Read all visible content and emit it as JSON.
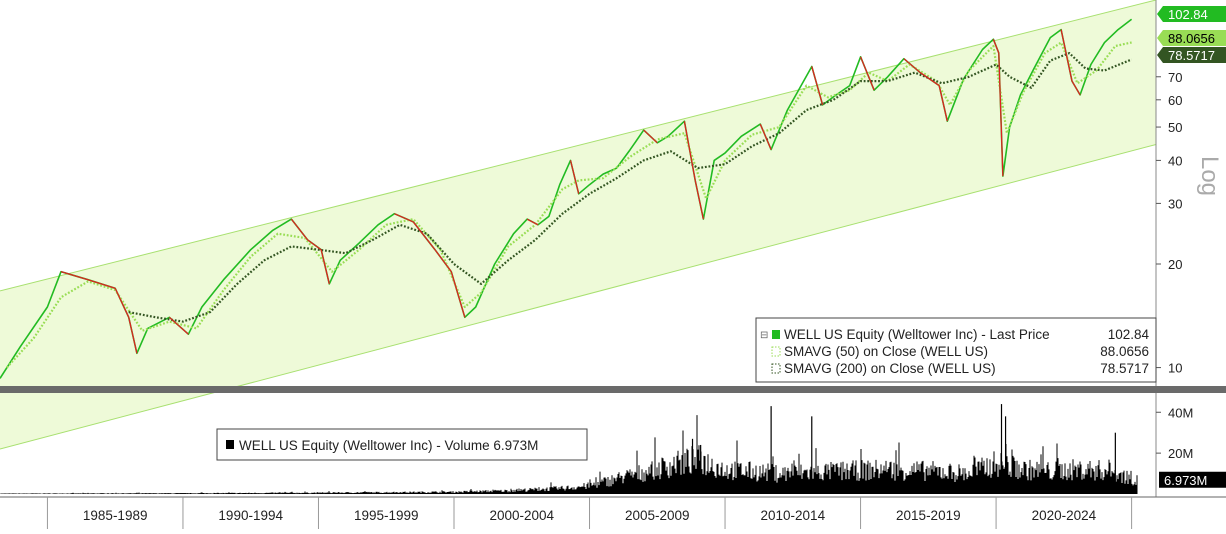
{
  "chart_data": [
    {
      "type": "line",
      "panel": "price",
      "scale": "log",
      "axis_label": "Log",
      "y_ticks": [
        10,
        20,
        30,
        40,
        50,
        60,
        70
      ],
      "ylim": [
        8.9,
        117
      ],
      "xlim": [
        1983.25,
        2025.9
      ],
      "x_tick_labels": [
        "1985-1989",
        "1990-1994",
        "1995-1999",
        "2000-2004",
        "2005-2009",
        "2010-2014",
        "2015-2019",
        "2020-2024"
      ],
      "x_period_starts": [
        1985,
        1990,
        1995,
        2000,
        2005,
        2010,
        2015,
        2020,
        2025
      ],
      "grid": false,
      "legend_position": "bottom-right",
      "channel": {
        "upper": [
          [
            1983.25,
            16.7
          ],
          [
            2025.9,
            117
          ]
        ],
        "lower": [
          [
            1983.25,
            5.8
          ],
          [
            2025.9,
            44.5
          ]
        ]
      },
      "series": [
        {
          "name": "WELL US Equity (Welltower Inc) - Last Price",
          "value_label": "102.84",
          "color": "#22bb22",
          "points": [
            [
              1983.25,
              9.3
            ],
            [
              1984,
              11.5
            ],
            [
              1985,
              15
            ],
            [
              1985.5,
              19
            ],
            [
              1986.5,
              18
            ],
            [
              1987.5,
              17
            ],
            [
              1988.0,
              14
            ],
            [
              1988.3,
              11
            ],
            [
              1988.7,
              13
            ],
            [
              1989.5,
              14
            ],
            [
              1990.2,
              12.5
            ],
            [
              1990.7,
              15
            ],
            [
              1991.5,
              18
            ],
            [
              1992.5,
              22
            ],
            [
              1993.3,
              25
            ],
            [
              1994.0,
              27
            ],
            [
              1994.6,
              23.5
            ],
            [
              1995.1,
              22
            ],
            [
              1995.4,
              17.5
            ],
            [
              1995.8,
              20.5
            ],
            [
              1996.5,
              23
            ],
            [
              1997.2,
              26
            ],
            [
              1997.8,
              28
            ],
            [
              1998.5,
              26.5
            ],
            [
              1999.3,
              22
            ],
            [
              1999.9,
              19
            ],
            [
              2000.4,
              14
            ],
            [
              2000.8,
              15
            ],
            [
              2001.5,
              20
            ],
            [
              2002.2,
              24.5
            ],
            [
              2002.7,
              27
            ],
            [
              2003.1,
              26
            ],
            [
              2003.5,
              27.5
            ],
            [
              2003.9,
              34
            ],
            [
              2004.3,
              40
            ],
            [
              2004.6,
              32
            ],
            [
              2005.0,
              34
            ],
            [
              2005.5,
              36.5
            ],
            [
              2006.0,
              38
            ],
            [
              2006.5,
              43
            ],
            [
              2007.0,
              49
            ],
            [
              2007.5,
              45
            ],
            [
              2007.9,
              47
            ],
            [
              2008.5,
              52
            ],
            [
              2008.9,
              35
            ],
            [
              2009.2,
              27
            ],
            [
              2009.6,
              40
            ],
            [
              2010.0,
              42
            ],
            [
              2010.6,
              47
            ],
            [
              2011.3,
              51
            ],
            [
              2011.7,
              43
            ],
            [
              2012.3,
              56
            ],
            [
              2013.2,
              75
            ],
            [
              2013.6,
              58
            ],
            [
              2014.1,
              62
            ],
            [
              2014.6,
              66
            ],
            [
              2015.0,
              80
            ],
            [
              2015.5,
              64
            ],
            [
              2016.0,
              70
            ],
            [
              2016.6,
              79
            ],
            [
              2017.2,
              72
            ],
            [
              2017.9,
              66
            ],
            [
              2018.2,
              52
            ],
            [
              2018.8,
              69
            ],
            [
              2019.5,
              84
            ],
            [
              2019.9,
              90
            ],
            [
              2020.1,
              82
            ],
            [
              2020.25,
              36
            ],
            [
              2020.5,
              50
            ],
            [
              2020.9,
              62
            ],
            [
              2021.4,
              74
            ],
            [
              2022.0,
              91
            ],
            [
              2022.4,
              96
            ],
            [
              2022.8,
              68
            ],
            [
              2023.1,
              62
            ],
            [
              2023.5,
              76
            ],
            [
              2024.0,
              88
            ],
            [
              2024.5,
              96
            ],
            [
              2025.0,
              102.84
            ]
          ]
        },
        {
          "name": "SMAVG (50)  on Close (WELL US)",
          "value_label": "88.0656",
          "color": "#99dd55",
          "style": "dotted",
          "points": [
            [
              1983.5,
              10
            ],
            [
              1984.5,
              12.2
            ],
            [
              1985.5,
              16
            ],
            [
              1986.5,
              17.8
            ],
            [
              1987.5,
              16.8
            ],
            [
              1988.5,
              12.8
            ],
            [
              1989.5,
              13.6
            ],
            [
              1990.5,
              13
            ],
            [
              1991.5,
              16.8
            ],
            [
              1992.5,
              21
            ],
            [
              1993.5,
              24.5
            ],
            [
              1994.5,
              23.8
            ],
            [
              1995.5,
              19
            ],
            [
              1996.5,
              22
            ],
            [
              1997.5,
              26
            ],
            [
              1998.5,
              27
            ],
            [
              1999.5,
              22
            ],
            [
              2000.4,
              15
            ],
            [
              2001.0,
              16.5
            ],
            [
              2002.0,
              22.5
            ],
            [
              2003.0,
              26
            ],
            [
              2004.0,
              33
            ],
            [
              2004.6,
              35
            ],
            [
              2005.5,
              35.5
            ],
            [
              2006.5,
              41
            ],
            [
              2007.5,
              46
            ],
            [
              2008.5,
              48
            ],
            [
              2009.3,
              31
            ],
            [
              2010.0,
              40
            ],
            [
              2011.0,
              47.5
            ],
            [
              2012.0,
              50
            ],
            [
              2013.0,
              66
            ],
            [
              2013.8,
              61
            ],
            [
              2014.6,
              64
            ],
            [
              2015.3,
              72
            ],
            [
              2016.0,
              68
            ],
            [
              2016.8,
              76
            ],
            [
              2017.8,
              68
            ],
            [
              2018.3,
              58
            ],
            [
              2019.0,
              73
            ],
            [
              2019.9,
              86
            ],
            [
              2020.4,
              48
            ],
            [
              2021.0,
              63
            ],
            [
              2021.8,
              82
            ],
            [
              2022.4,
              88
            ],
            [
              2023.0,
              67
            ],
            [
              2023.7,
              73
            ],
            [
              2024.4,
              86
            ],
            [
              2025.0,
              88.0656
            ]
          ]
        },
        {
          "name": "SMAVG (200)  on Close (WELL US)",
          "value_label": "78.5717",
          "color": "#335522",
          "style": "dotted",
          "points": [
            [
              1988.0,
              14.5
            ],
            [
              1989.0,
              14.0
            ],
            [
              1990.0,
              13.6
            ],
            [
              1991.0,
              14.5
            ],
            [
              1992.0,
              17.5
            ],
            [
              1993.0,
              20.5
            ],
            [
              1994.0,
              22.5
            ],
            [
              1995.0,
              22
            ],
            [
              1996.0,
              21.5
            ],
            [
              1997.0,
              23.5
            ],
            [
              1998.0,
              26
            ],
            [
              1999.0,
              24.5
            ],
            [
              2000.0,
              20
            ],
            [
              2001.0,
              17.5
            ],
            [
              2002.0,
              20.5
            ],
            [
              2003.0,
              23.5
            ],
            [
              2004.0,
              28
            ],
            [
              2005.0,
              32
            ],
            [
              2006.0,
              35.5
            ],
            [
              2007.0,
              40
            ],
            [
              2008.0,
              42.5
            ],
            [
              2009.0,
              38
            ],
            [
              2010.0,
              39
            ],
            [
              2011.0,
              44
            ],
            [
              2012.0,
              48
            ],
            [
              2013.0,
              56
            ],
            [
              2014.0,
              60
            ],
            [
              2015.0,
              68
            ],
            [
              2016.0,
              68
            ],
            [
              2017.0,
              72
            ],
            [
              2018.0,
              67
            ],
            [
              2019.0,
              70
            ],
            [
              2020.0,
              76
            ],
            [
              2020.5,
              70
            ],
            [
              2021.3,
              65
            ],
            [
              2022.0,
              78
            ],
            [
              2022.7,
              82
            ],
            [
              2023.3,
              74
            ],
            [
              2024.0,
              73
            ],
            [
              2025.0,
              78.5717
            ]
          ]
        }
      ],
      "last_price_labels": [
        {
          "text": "102.84",
          "value": 102.84,
          "color": "#22bb22"
        },
        {
          "text": "88.0656",
          "value": 88.0656,
          "color": "#99dd55"
        },
        {
          "text": "78.5717",
          "value": 78.5717,
          "color": "#335522"
        }
      ]
    },
    {
      "type": "bar",
      "panel": "volume",
      "series_name": "WELL US Equity (Welltower Inc) - Volume",
      "last_value_label": "6.973M",
      "y_ticks": [
        {
          "value": 20,
          "label": "20M"
        },
        {
          "value": 40,
          "label": "40M"
        }
      ],
      "ylim": [
        0,
        46
      ],
      "volume_profile_millions": [
        [
          1983.25,
          0.2
        ],
        [
          1990,
          0.35
        ],
        [
          1995,
          0.6
        ],
        [
          2000,
          1.0
        ],
        [
          2002,
          1.6
        ],
        [
          2004,
          2.8
        ],
        [
          2005,
          4.0
        ],
        [
          2006,
          7.5
        ],
        [
          2007,
          10.5
        ],
        [
          2008,
          14.0
        ],
        [
          2009,
          17.0
        ],
        [
          2010,
          12.0
        ],
        [
          2012,
          10.0
        ],
        [
          2014,
          11.0
        ],
        [
          2016,
          12.0
        ],
        [
          2018,
          11.0
        ],
        [
          2019,
          10.0
        ],
        [
          2020,
          15.0
        ],
        [
          2021,
          12.0
        ],
        [
          2022,
          11.0
        ],
        [
          2023,
          12.0
        ],
        [
          2024,
          11.5
        ],
        [
          2025.2,
          7.0
        ]
      ],
      "volume_spikes_millions": [
        [
          2008.8,
          27
        ],
        [
          2009.1,
          24
        ],
        [
          2011.7,
          43
        ],
        [
          2013.2,
          38
        ],
        [
          2020.2,
          44
        ],
        [
          2020.35,
          38
        ],
        [
          2024.4,
          30
        ]
      ]
    }
  ],
  "legend_price": {
    "entries": [
      {
        "label": "WELL US Equity (Welltower Inc) - Last Price",
        "value": "102.84",
        "swatch": "#22bb22",
        "style": "solid"
      },
      {
        "label": "SMAVG (50)  on Close (WELL US)",
        "value": "88.0656",
        "swatch": "#99dd55",
        "style": "dotted"
      },
      {
        "label": "SMAVG (200)  on Close (WELL US)",
        "value": "78.5717",
        "swatch": "#335522",
        "style": "dotted"
      }
    ]
  },
  "legend_volume": {
    "label": "WELL US Equity (Welltower Inc) - Volume 6.973M"
  }
}
